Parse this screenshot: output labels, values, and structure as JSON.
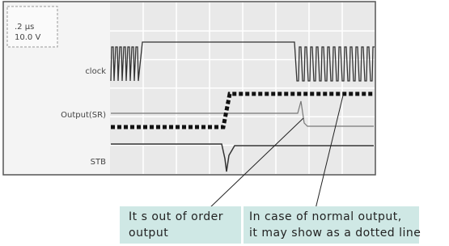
{
  "scope": {
    "timebase": ".2 μs",
    "voltage": "10.0 V",
    "channels": [
      "clock",
      "Output(SR)",
      "STB"
    ]
  },
  "annotations": [
    {
      "lines": [
        "It s out of order",
        "output"
      ]
    },
    {
      "lines": [
        "In case of normal output,",
        "it may show as a dotted line"
      ]
    }
  ]
}
